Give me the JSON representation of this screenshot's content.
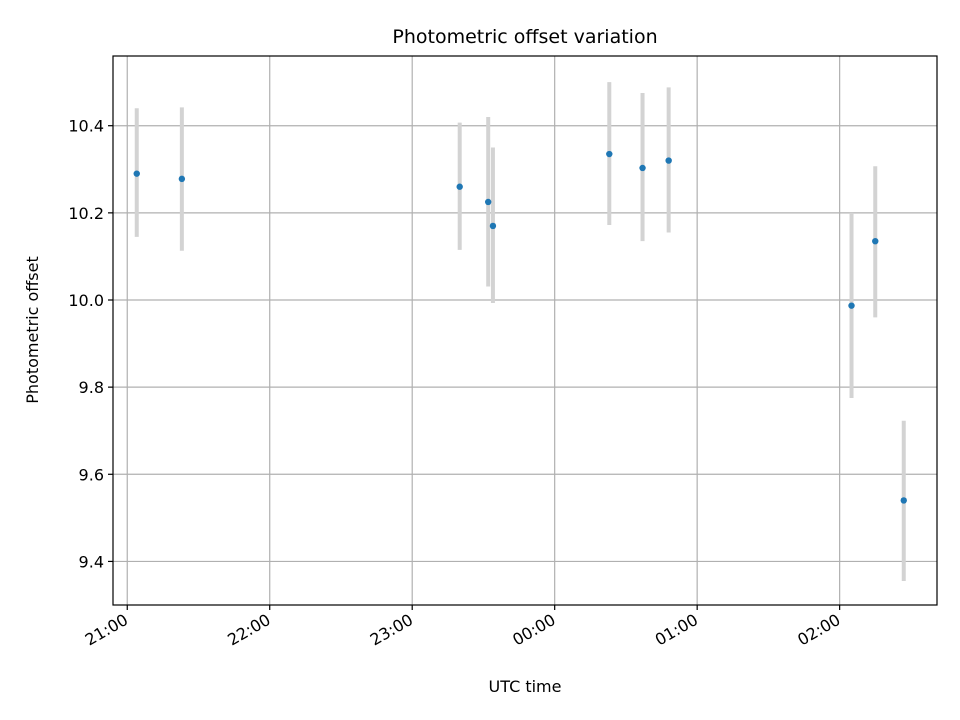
{
  "chart_data": {
    "type": "scatter",
    "title": "Photometric offset variation",
    "xlabel": "UTC time",
    "ylabel": "Photometric offset",
    "x_unit": "hours",
    "xlim": [
      "20:54",
      "02:41"
    ],
    "ylim": [
      9.3,
      10.56
    ],
    "grid": true,
    "x_ticks": [
      "21:00",
      "22:00",
      "23:00",
      "00:00",
      "01:00",
      "02:00"
    ],
    "y_ticks": [
      9.4,
      9.6,
      9.8,
      10.0,
      10.2,
      10.4
    ],
    "y_tick_labels": [
      "9.4",
      "9.6",
      "9.8",
      "10.0",
      "10.2",
      "10.4"
    ],
    "point_color": "#1f77b4",
    "errorbar_color": "#d3d3d3",
    "points": [
      {
        "x": "21:04",
        "y": 10.29,
        "ylow": 10.145,
        "yhigh": 10.44
      },
      {
        "x": "21:23",
        "y": 10.278,
        "ylow": 10.113,
        "yhigh": 10.442
      },
      {
        "x": "23:20",
        "y": 10.26,
        "ylow": 10.115,
        "yhigh": 10.407
      },
      {
        "x": "23:32",
        "y": 10.225,
        "ylow": 10.031,
        "yhigh": 10.42
      },
      {
        "x": "23:34",
        "y": 10.17,
        "ylow": 9.993,
        "yhigh": 10.35
      },
      {
        "x": "00:23",
        "y": 10.335,
        "ylow": 10.172,
        "yhigh": 10.5
      },
      {
        "x": "00:37",
        "y": 10.303,
        "ylow": 10.135,
        "yhigh": 10.475
      },
      {
        "x": "00:48",
        "y": 10.32,
        "ylow": 10.155,
        "yhigh": 10.488
      },
      {
        "x": "02:05",
        "y": 9.987,
        "ylow": 9.775,
        "yhigh": 10.2
      },
      {
        "x": "02:15",
        "y": 10.135,
        "ylow": 9.96,
        "yhigh": 10.307
      },
      {
        "x": "02:27",
        "y": 9.54,
        "ylow": 9.355,
        "yhigh": 9.723
      }
    ]
  }
}
